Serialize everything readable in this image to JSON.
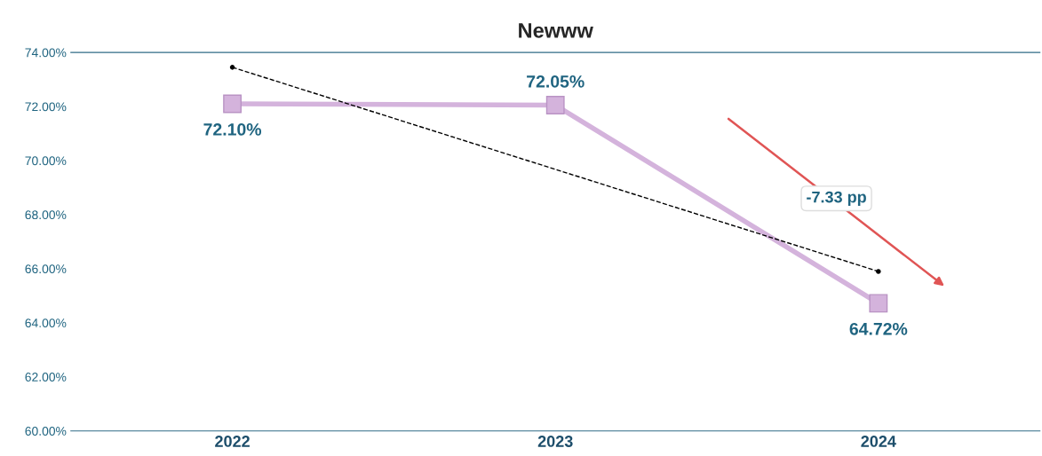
{
  "chart_data": {
    "type": "line",
    "title": "Newww",
    "categories": [
      "2022",
      "2023",
      "2024"
    ],
    "series": [
      {
        "color": "#d4b3dc",
        "values": [
          72.1,
          72.05,
          64.72
        ],
        "value_labels": [
          "72.10%",
          "72.05%",
          "64.72%"
        ],
        "marker": "square",
        "line_style": "solid"
      },
      {
        "type": "line",
        "color": "#000000",
        "values": [
          73.45,
          null,
          65.9
        ],
        "line_style": "dashed",
        "marker": "circle"
      }
    ],
    "ylim": [
      60,
      74
    ],
    "yticks": [
      {
        "value": 60,
        "label": "60.00%"
      },
      {
        "value": 62,
        "label": "62.00%"
      },
      {
        "value": 64,
        "label": "64.00%"
      },
      {
        "value": 66,
        "label": "66.00%"
      },
      {
        "value": 68,
        "label": "68.00%"
      },
      {
        "value": 70,
        "label": "70.00%"
      },
      {
        "value": 72,
        "label": "72.00%"
      },
      {
        "value": 74,
        "label": "74.00%"
      }
    ],
    "grid": false,
    "legend": false,
    "annotations": [
      "-7.33 pp"
    ]
  }
}
